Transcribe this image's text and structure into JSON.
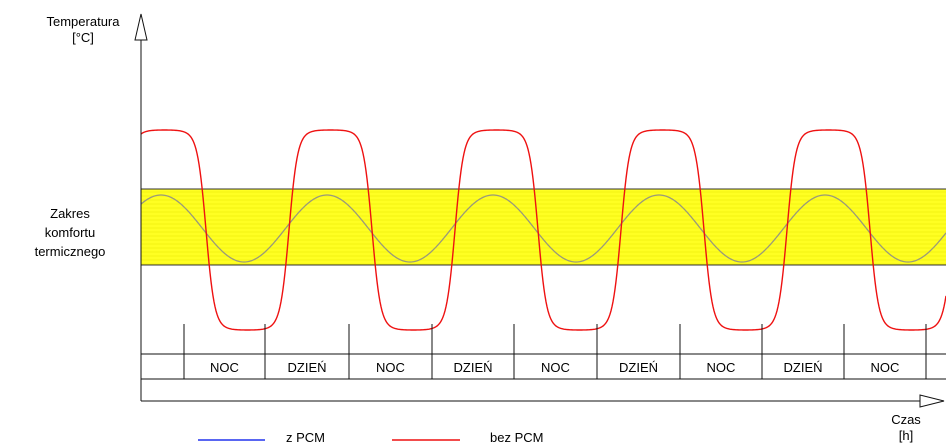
{
  "axes": {
    "y_title_line1": "Temperatura",
    "y_title_line2": "[°C]",
    "x_title_line1": "Czas",
    "x_title_line2": "[h]"
  },
  "comfort_zone": {
    "label_line1": "Zakres",
    "label_line2": "komfortu",
    "label_line3": "termicznego",
    "fill_color": "#ffff22",
    "stripe_color": "#e8e800"
  },
  "periods": [
    "NOC",
    "DZIEŃ",
    "NOC",
    "DZIEŃ",
    "NOC",
    "DZIEŃ",
    "NOC",
    "DZIEŃ",
    "NOC"
  ],
  "legend": {
    "pcm_label": "z PCM",
    "pcm_color": "#2233ee",
    "nopcm_label": "bez PCM",
    "nopcm_color": "#ee1111"
  },
  "curves": {
    "pcm_line_color": "#9a9a7a",
    "nopcm_color": "#ee1111"
  }
}
